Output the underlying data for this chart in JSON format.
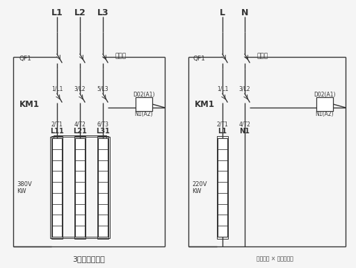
{
  "bg_color": "#f5f5f5",
  "line_color": "#333333",
  "title1": "3相电加热接线",
  "watermark": "相地海霸 × 优易邦暖通",
  "label_QF1": "QF1",
  "label_duanluqi": "断路器",
  "label_KM1": "KM1",
  "label_DO2A1": "D02(A1)",
  "label_N1A2": "N1(A2)",
  "label_380V": "380V",
  "label_220V": "220V",
  "label_KW": "KW"
}
